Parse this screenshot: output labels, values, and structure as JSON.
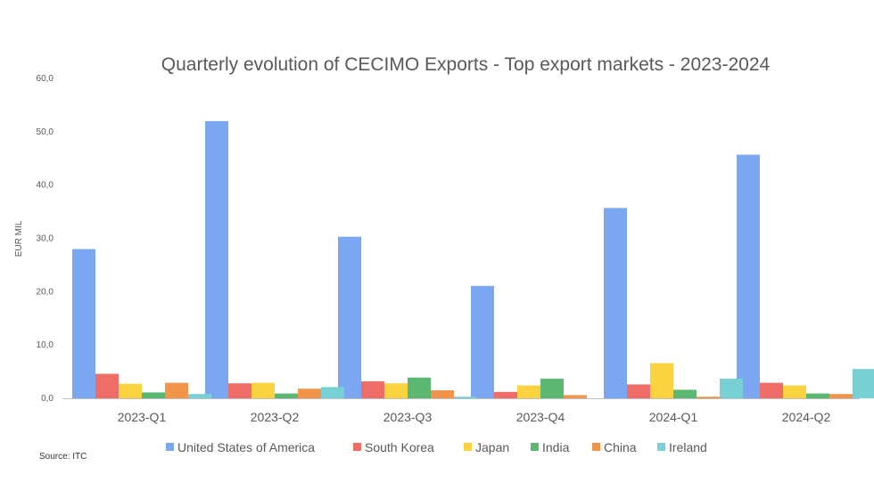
{
  "chart_data": {
    "type": "bar",
    "title": "Quarterly evolution of CECIMO Exports - Top export markets - 2023-2024",
    "xlabel": "",
    "ylabel": "EUR MIL",
    "ylim": [
      0,
      60
    ],
    "yticks": [
      "0,0",
      "10,0",
      "20,0",
      "30,0",
      "40,0",
      "50,0",
      "60,0"
    ],
    "ytick_values": [
      0,
      10,
      20,
      30,
      40,
      50,
      60
    ],
    "categories": [
      "2023-Q1",
      "2023-Q2",
      "2023-Q3",
      "2023-Q4",
      "2024-Q1",
      "2024-Q2"
    ],
    "series": [
      {
        "name": "United States of America",
        "color": "#7ba7f2",
        "values": [
          28.0,
          52.0,
          30.3,
          21.1,
          35.7,
          45.7
        ]
      },
      {
        "name": "South Korea",
        "color": "#ef6d67",
        "values": [
          4.6,
          2.8,
          3.2,
          1.2,
          2.6,
          2.9
        ]
      },
      {
        "name": "Japan",
        "color": "#fbd240",
        "values": [
          2.7,
          2.9,
          2.8,
          2.4,
          6.6,
          2.4
        ]
      },
      {
        "name": "India",
        "color": "#5cb870",
        "values": [
          1.1,
          0.9,
          3.9,
          3.7,
          1.6,
          0.9
        ]
      },
      {
        "name": "China",
        "color": "#f2954a",
        "values": [
          2.9,
          1.8,
          1.5,
          0.6,
          0.3,
          0.8
        ]
      },
      {
        "name": "Ireland",
        "color": "#76d0d4",
        "values": [
          0.8,
          2.1,
          0.3,
          0.0,
          3.7,
          5.5
        ]
      }
    ],
    "grid": false,
    "legend": "bottom",
    "source": "Source: ITC"
  }
}
